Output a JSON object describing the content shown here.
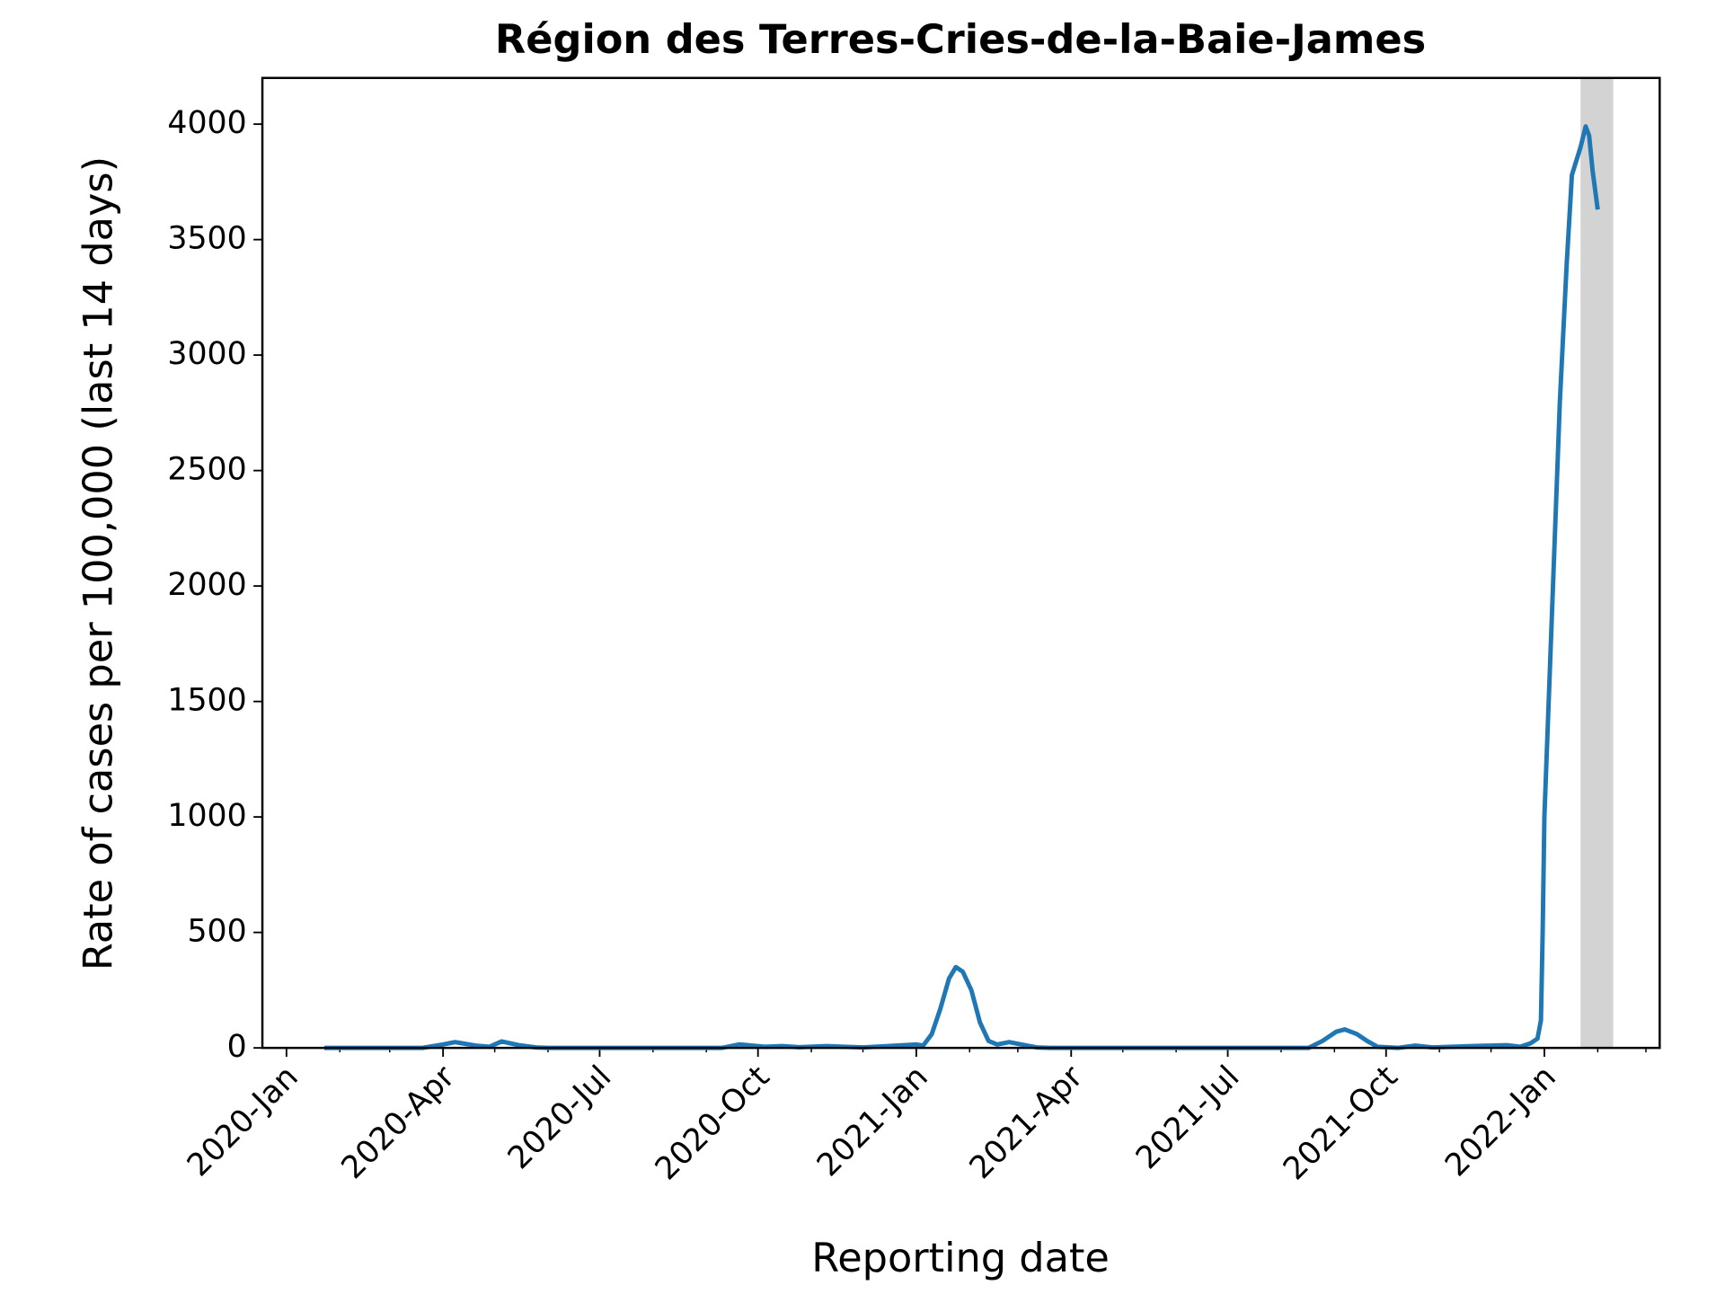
{
  "chart_data": {
    "type": "line",
    "title": "Région des Terres-Cries-de-la-Baie-James",
    "x_label": "Reporting date",
    "y_label": "Rate of cases per 100,000 (last 14 days)",
    "xlim": [
      "2019-12-18",
      "2022-03-09"
    ],
    "ylim": [
      0,
      4200
    ],
    "xticks": [
      {
        "value": "2020-01-01",
        "label": "2020-Jan"
      },
      {
        "value": "2020-04-01",
        "label": "2020-Apr"
      },
      {
        "value": "2020-07-01",
        "label": "2020-Jul"
      },
      {
        "value": "2020-10-01",
        "label": "2020-Oct"
      },
      {
        "value": "2021-01-01",
        "label": "2021-Jan"
      },
      {
        "value": "2021-04-01",
        "label": "2021-Apr"
      },
      {
        "value": "2021-07-01",
        "label": "2021-Jul"
      },
      {
        "value": "2021-10-01",
        "label": "2021-Oct"
      },
      {
        "value": "2022-01-01",
        "label": "2022-Jan"
      }
    ],
    "xminorticks": [
      "2020-02-01",
      "2020-03-01",
      "2020-05-01",
      "2020-06-01",
      "2020-08-01",
      "2020-09-01",
      "2020-11-01",
      "2020-12-01",
      "2021-02-01",
      "2021-03-01",
      "2021-05-01",
      "2021-06-01",
      "2021-08-01",
      "2021-09-01",
      "2021-11-01",
      "2021-12-01",
      "2022-02-01",
      "2022-03-01"
    ],
    "yticks": [
      0,
      500,
      1000,
      1500,
      2000,
      2500,
      3000,
      3500,
      4000
    ],
    "shaded_region": [
      "2022-01-22",
      "2022-02-10"
    ],
    "shaded_color": "#d3d3d3",
    "x": [
      "2020-01-23",
      "2020-03-20",
      "2020-04-01",
      "2020-04-08",
      "2020-04-20",
      "2020-04-28",
      "2020-05-05",
      "2020-05-15",
      "2020-05-25",
      "2020-06-01",
      "2020-09-10",
      "2020-09-20",
      "2020-10-05",
      "2020-10-15",
      "2020-10-25",
      "2020-11-10",
      "2020-11-20",
      "2020-12-01",
      "2020-12-20",
      "2021-01-01",
      "2021-01-05",
      "2021-01-10",
      "2021-01-15",
      "2021-01-20",
      "2021-01-24",
      "2021-01-28",
      "2021-02-02",
      "2021-02-07",
      "2021-02-12",
      "2021-02-17",
      "2021-02-24",
      "2021-03-05",
      "2021-03-12",
      "2021-03-20",
      "2021-08-17",
      "2021-08-25",
      "2021-09-02",
      "2021-09-07",
      "2021-09-14",
      "2021-09-20",
      "2021-09-26",
      "2021-10-08",
      "2021-10-18",
      "2021-10-28",
      "2021-11-20",
      "2021-12-01",
      "2021-12-10",
      "2021-12-18",
      "2021-12-24",
      "2021-12-28",
      "2021-12-30",
      "2021-12-31",
      "2022-01-01",
      "2022-01-06",
      "2022-01-10",
      "2022-01-14",
      "2022-01-17",
      "2022-01-22",
      "2022-01-25",
      "2022-01-27",
      "2022-01-29",
      "2022-02-01"
    ],
    "series": [
      {
        "name": "Rate",
        "color": "#1f77b4",
        "values": [
          0,
          0,
          15,
          25,
          10,
          5,
          28,
          12,
          2,
          0,
          0,
          15,
          5,
          8,
          3,
          8,
          5,
          2,
          10,
          15,
          10,
          60,
          170,
          300,
          350,
          330,
          250,
          110,
          30,
          15,
          25,
          12,
          2,
          0,
          0,
          30,
          70,
          80,
          60,
          30,
          5,
          0,
          10,
          2,
          8,
          10,
          12,
          5,
          20,
          40,
          120,
          500,
          1000,
          2000,
          2800,
          3400,
          3780,
          3900,
          3990,
          3950,
          3800,
          3630
        ]
      }
    ]
  }
}
